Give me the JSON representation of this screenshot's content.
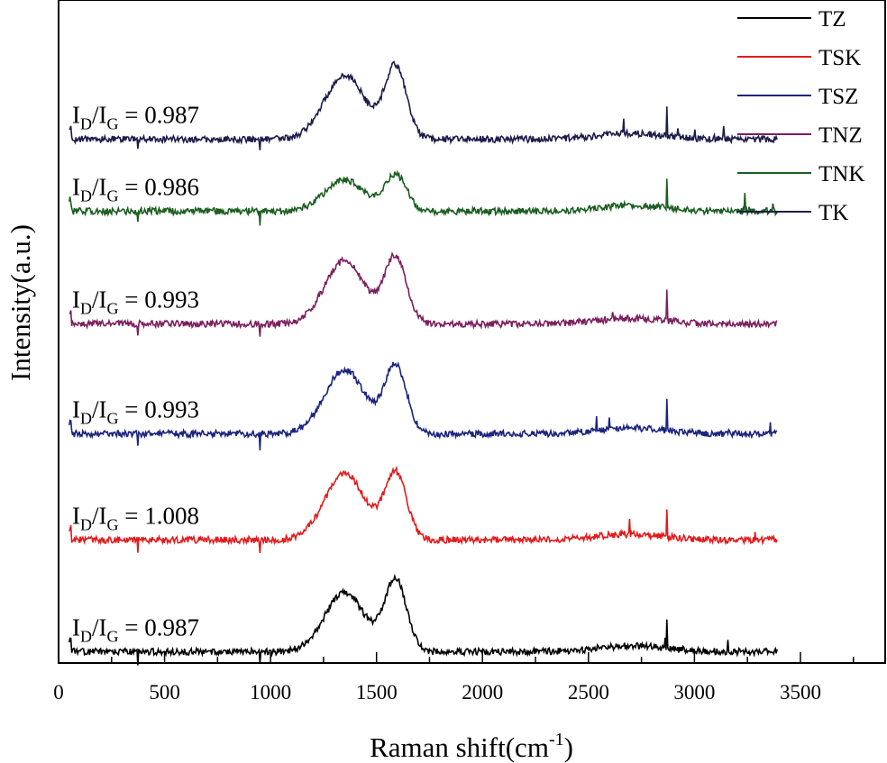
{
  "chart_data": {
    "type": "line",
    "title": "",
    "xlabel": "Raman shift(cm",
    "xlabel_sup": "-1",
    "xlabel_close": ")",
    "ylabel": "Intensity(a.u.)",
    "xlim": [
      0,
      3900
    ],
    "ylim": [
      0,
      7
    ],
    "x_ticks": [
      0,
      500,
      1000,
      1500,
      2000,
      2500,
      3000,
      3500
    ],
    "x_tick_labels": [
      "0",
      "500",
      "1000",
      "1500",
      "2000",
      "2500",
      "3000",
      "3500"
    ],
    "y_ticks_shown": false,
    "legend_position": "top-right",
    "ratio_prefix_I": "I",
    "ratio_sub_D": "D",
    "ratio_slash": "/I",
    "ratio_sub_G": "G",
    "series": [
      {
        "name": "TZ",
        "color": "#000000",
        "baseline": 0.12,
        "d_height": 0.62,
        "g_height": 0.75,
        "ratio_text": " = 0.987",
        "ratio_value": 0.987,
        "seed": 11
      },
      {
        "name": "TSK",
        "color": "#e31a1c",
        "baseline": 1.3,
        "d_height": 0.7,
        "g_height": 0.7,
        "ratio_text": " = 1.008",
        "ratio_value": 1.008,
        "seed": 23
      },
      {
        "name": "TSZ",
        "color": "#1a237e",
        "baseline": 2.42,
        "d_height": 0.68,
        "g_height": 0.72,
        "ratio_text": " = 0.993",
        "ratio_value": 0.993,
        "seed": 37
      },
      {
        "name": "TNZ",
        "color": "#7b1f5e",
        "baseline": 3.58,
        "d_height": 0.67,
        "g_height": 0.7,
        "ratio_text": " = 0.993",
        "ratio_value": 0.993,
        "seed": 41
      },
      {
        "name": "TNK",
        "color": "#1b5e20",
        "baseline": 4.77,
        "d_height": 0.33,
        "g_height": 0.38,
        "ratio_text": " = 0.986",
        "ratio_value": 0.986,
        "seed": 53
      },
      {
        "name": "TK",
        "color": "#1c1c4a",
        "baseline": 5.53,
        "d_height": 0.68,
        "g_height": 0.76,
        "ratio_text": " = 0.987",
        "ratio_value": 0.987,
        "seed": 67
      }
    ]
  }
}
